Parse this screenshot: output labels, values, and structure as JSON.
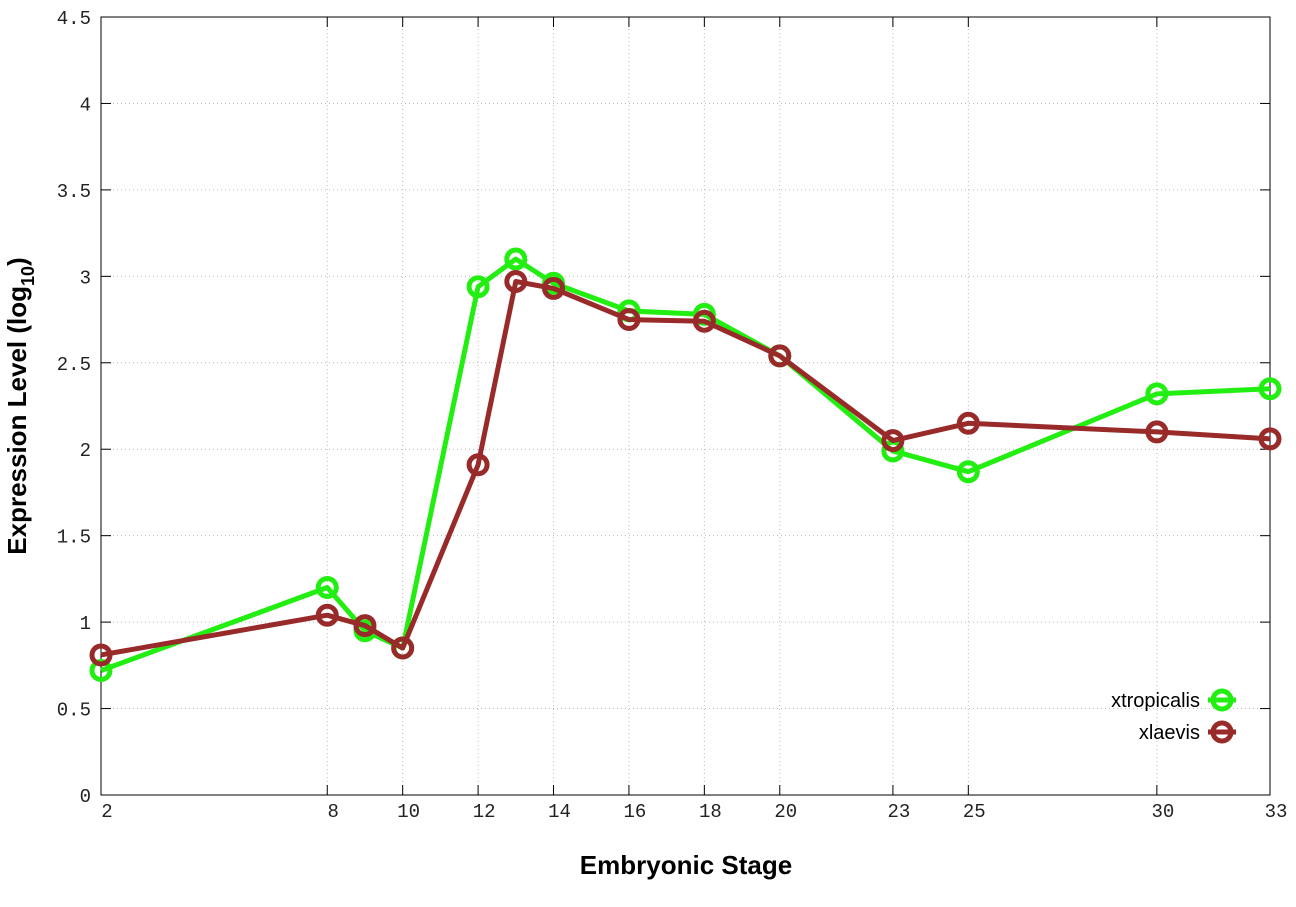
{
  "chart_data": {
    "type": "line",
    "xlabel": "Embryonic Stage",
    "ylabel": [
      "Expression Level (log",
      "10",
      ")"
    ],
    "x": [
      2,
      8,
      9,
      10,
      12,
      13,
      14,
      16,
      18,
      20,
      23,
      25,
      30,
      33
    ],
    "series": [
      {
        "name": "xtropicalis",
        "color": "#22ee11",
        "values": [
          0.72,
          1.2,
          0.95,
          0.85,
          2.94,
          3.1,
          2.96,
          2.8,
          2.78,
          2.54,
          1.99,
          1.87,
          2.32,
          2.35
        ]
      },
      {
        "name": "xlaevis",
        "color": "#992a2a",
        "values": [
          0.81,
          1.04,
          0.98,
          0.85,
          1.91,
          2.97,
          2.93,
          2.75,
          2.74,
          2.54,
          2.05,
          2.15,
          2.1,
          2.06
        ]
      }
    ],
    "xlim": [
      2,
      33
    ],
    "xticks": [
      2,
      8,
      10,
      12,
      14,
      16,
      18,
      20,
      23,
      25,
      30,
      33
    ],
    "ylim": [
      0,
      4.5
    ],
    "yticks": [
      0,
      0.5,
      1,
      1.5,
      2,
      2.5,
      3,
      3.5,
      4,
      4.5
    ],
    "grid": true,
    "legend": "bottom right"
  }
}
